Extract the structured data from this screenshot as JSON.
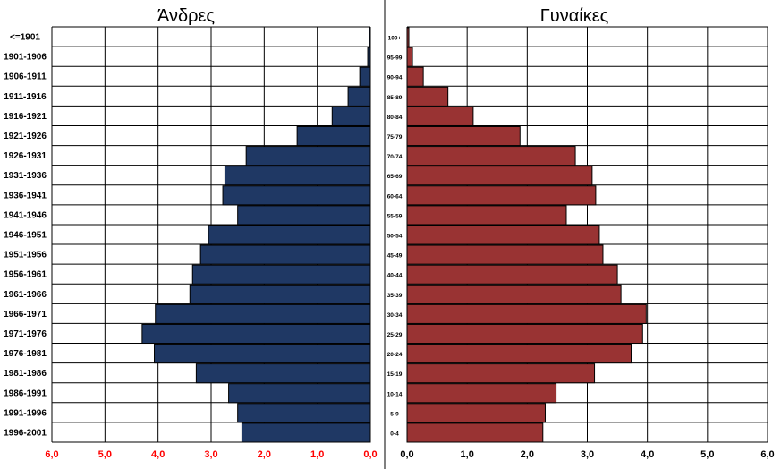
{
  "chart_data": [
    {
      "type": "bar",
      "orientation": "horizontal",
      "direction": "right-to-left",
      "title": "Άνδρες",
      "categories": [
        "<=1901",
        "1901-1906",
        "1906-1911",
        "1911-1916",
        "1916-1921",
        "1921-1926",
        "1926-1931",
        "1931-1936",
        "1936-1941",
        "1941-1946",
        "1946-1951",
        "1951-1956",
        "1956-1961",
        "1961-1966",
        "1966-1971",
        "1971-1976",
        "1976-1981",
        "1981-1986",
        "1986-1991",
        "1991-1996",
        "1996-2001"
      ],
      "values": [
        0.02,
        0.05,
        0.2,
        0.42,
        0.72,
        1.38,
        2.34,
        2.74,
        2.78,
        2.5,
        3.05,
        3.2,
        3.35,
        3.4,
        4.05,
        4.3,
        4.07,
        3.28,
        2.67,
        2.5,
        2.42
      ],
      "xticks": [
        "6,0",
        "5,0",
        "4,0",
        "3,0",
        "2,0",
        "1,0",
        "0,0"
      ],
      "xlim": [
        0,
        6
      ],
      "bar_color": "#1f3864",
      "tick_color": "#ff0000",
      "grid": true
    },
    {
      "type": "bar",
      "orientation": "horizontal",
      "direction": "left-to-right",
      "title": "Γυναίκες",
      "categories": [
        "100+",
        "95-99",
        "90-94",
        "85-89",
        "80-84",
        "75-79",
        "70-74",
        "65-69",
        "60-64",
        "55-59",
        "50-54",
        "45-49",
        "40-44",
        "35-39",
        "30-34",
        "25-29",
        "20-24",
        "15-19",
        "10-14",
        "5-9",
        "0-4"
      ],
      "values": [
        0.03,
        0.09,
        0.27,
        0.68,
        1.1,
        1.88,
        2.8,
        3.08,
        3.14,
        2.65,
        3.2,
        3.26,
        3.5,
        3.56,
        3.98,
        3.92,
        3.73,
        3.12,
        2.48,
        2.3,
        2.26
      ],
      "xticks": [
        "0,0",
        "1,0",
        "2,0",
        "3,0",
        "4,0",
        "5,0",
        "6,0"
      ],
      "xlim": [
        0,
        6
      ],
      "bar_color": "#993333",
      "tick_color": "#000000",
      "grid": true
    }
  ]
}
